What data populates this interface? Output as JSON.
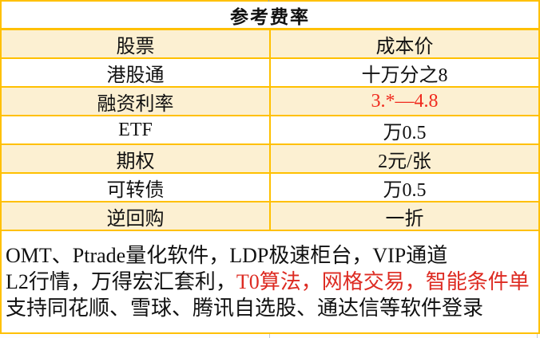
{
  "title": "参考费率",
  "colors": {
    "border_gold": "#FFC000",
    "row_alt_fill": "#FCF0D2",
    "value_red": "#F02A1E",
    "note_red": "#DD2B22",
    "text": "#111111"
  },
  "table": {
    "header": "参考费率",
    "rows": [
      {
        "label": "股票",
        "value": "成本价"
      },
      {
        "label": "港股通",
        "value": "十万分之8"
      },
      {
        "label": "融资利率",
        "value": "3.*—4.8"
      },
      {
        "label": "ETF",
        "value": "万0.5"
      },
      {
        "label": "期权",
        "value": "2元/张"
      },
      {
        "label": "可转债",
        "value": "万0.5"
      },
      {
        "label": "逆回购",
        "value": "一折"
      }
    ]
  },
  "notes": {
    "line1": "OMT、Ptrade量化软件，LDP极速柜台，VIP通道",
    "line2_black": "L2行情，万得宏汇套利，",
    "line2_red": "T0算法，网格交易，智能条件单",
    "line3": "支持同花顺、雪球、腾讯自选股、通达信等软件登录"
  }
}
